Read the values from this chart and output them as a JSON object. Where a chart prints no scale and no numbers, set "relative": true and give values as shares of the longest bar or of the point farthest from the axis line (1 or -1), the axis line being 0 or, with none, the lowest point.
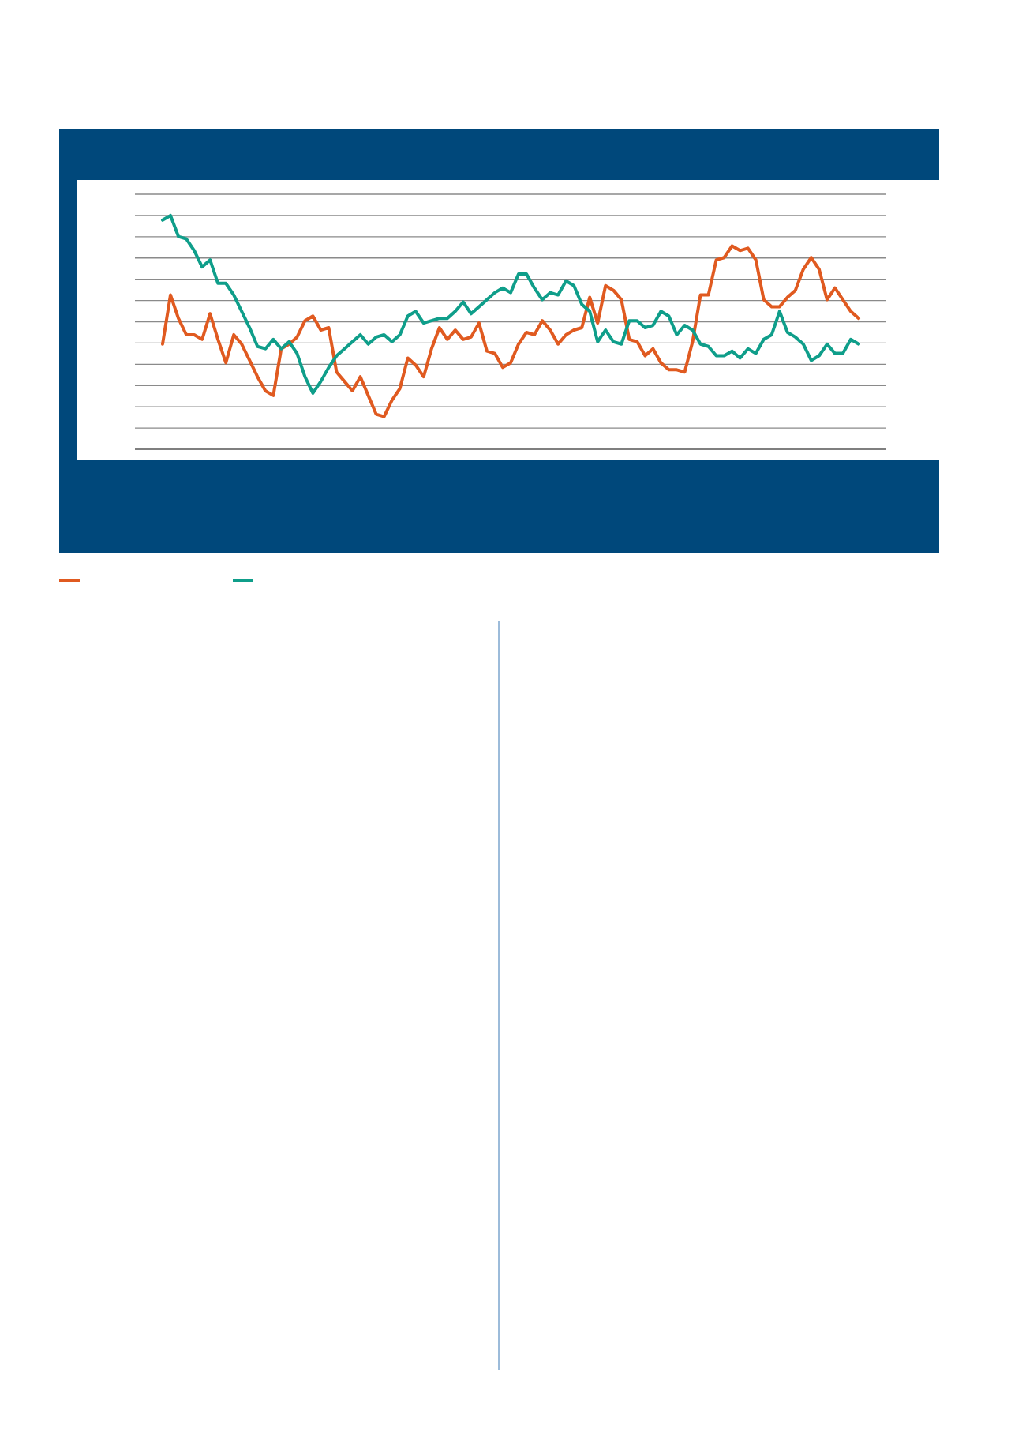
{
  "chart_data": {
    "type": "line",
    "relative": true,
    "grid": true,
    "categories": [
      null,
      null,
      null,
      null,
      null,
      null,
      null,
      null,
      null,
      null,
      null,
      null,
      null,
      null,
      null,
      null,
      null,
      null,
      null,
      null,
      null,
      null,
      null,
      null,
      null,
      null,
      null,
      null,
      null,
      null,
      null,
      null,
      null,
      null,
      null,
      null,
      null,
      null,
      null,
      null,
      null,
      null,
      null,
      null,
      null,
      null,
      null,
      null,
      null,
      null,
      null,
      null,
      null,
      null,
      null,
      null,
      null,
      null,
      null,
      null,
      null,
      null,
      null,
      null,
      null,
      null,
      null,
      null,
      null,
      null,
      null,
      null,
      null,
      null,
      null,
      null,
      null,
      null,
      null,
      null,
      null,
      null,
      null,
      null,
      null,
      null,
      null,
      null,
      null
    ],
    "series": [
      {
        "color": "#e05a20",
        "values": [
          0.45,
          0.66,
          0.56,
          0.49,
          0.49,
          0.47,
          0.58,
          0.47,
          0.37,
          0.49,
          0.45,
          0.38,
          0.31,
          0.25,
          0.23,
          0.43,
          0.45,
          0.48,
          0.55,
          0.57,
          0.51,
          0.52,
          0.33,
          0.29,
          0.25,
          0.31,
          0.23,
          0.15,
          0.14,
          0.21,
          0.26,
          0.39,
          0.36,
          0.31,
          0.43,
          0.52,
          0.47,
          0.51,
          0.47,
          0.48,
          0.54,
          0.42,
          0.41,
          0.35,
          0.37,
          0.45,
          0.5,
          0.49,
          0.55,
          0.51,
          0.45,
          0.49,
          0.51,
          0.52,
          0.65,
          0.54,
          0.7,
          0.68,
          0.64,
          0.47,
          0.46,
          0.4,
          0.43,
          0.37,
          0.34,
          0.34,
          0.33,
          0.46,
          0.66,
          0.66,
          0.81,
          0.82,
          0.87,
          0.85,
          0.86,
          0.81,
          0.64,
          0.61,
          0.61,
          0.65,
          0.68,
          0.77,
          0.82,
          0.77,
          0.64,
          0.69,
          0.64,
          0.59,
          0.56
        ]
      },
      {
        "color": "#0f9e8a",
        "values": [
          0.98,
          1,
          0.91,
          0.9,
          0.85,
          0.78,
          0.81,
          0.71,
          0.71,
          0.66,
          0.59,
          0.52,
          0.44,
          0.43,
          0.47,
          0.43,
          0.46,
          0.41,
          0.31,
          0.24,
          0.29,
          0.35,
          0.4,
          0.43,
          0.46,
          0.49,
          0.45,
          0.48,
          0.49,
          0.46,
          0.49,
          0.57,
          0.59,
          0.54,
          0.55,
          0.56,
          0.56,
          0.59,
          0.63,
          0.58,
          0.61,
          0.64,
          0.67,
          0.69,
          0.67,
          0.75,
          0.75,
          0.69,
          0.64,
          0.67,
          0.66,
          0.72,
          0.7,
          0.62,
          0.59,
          0.46,
          0.51,
          0.46,
          0.45,
          0.55,
          0.55,
          0.52,
          0.53,
          0.59,
          0.57,
          0.49,
          0.53,
          0.51,
          0.45,
          0.44,
          0.4,
          0.4,
          0.42,
          0.39,
          0.43,
          0.41,
          0.47,
          0.49,
          0.59,
          0.5,
          0.48,
          0.45,
          0.38,
          0.4,
          0.45,
          0.41,
          0.41,
          0.47,
          0.45
        ]
      }
    ]
  }
}
